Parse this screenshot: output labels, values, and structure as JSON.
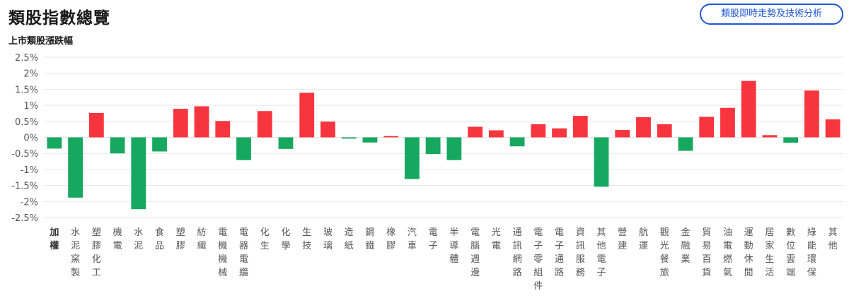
{
  "header": {
    "title": "類股指數總覽",
    "action_button": "類股即時走勢及技術分析"
  },
  "colors": {
    "up": "#f7353f",
    "down": "#16a85f",
    "grid": "#e6e6e6"
  },
  "chart_data": {
    "type": "bar",
    "title": "上市類股漲跌幅",
    "xlabel": "",
    "ylabel": "",
    "ylim": [
      -2.5,
      2.5
    ],
    "yticks": [
      2.5,
      2,
      1.5,
      1,
      0.5,
      0,
      -0.5,
      -1,
      -1.5,
      -2,
      -2.5
    ],
    "ytick_labels": [
      "2.5%",
      "2%",
      "1.5%",
      "1%",
      "0.5%",
      "0%",
      "-0.5%",
      "-1%",
      "-1.5%",
      "-2%",
      "-2.5%"
    ],
    "grid": true,
    "categories": [
      "加權",
      "水泥窯製",
      "塑膠化工",
      "機電",
      "水泥",
      "食品",
      "塑膠",
      "紡織",
      "電機機械",
      "電器電纜",
      "化生",
      "化學",
      "生技",
      "玻璃",
      "造紙",
      "鋼鐵",
      "橡膠",
      "汽車",
      "電子",
      "半導體",
      "電腦週邊",
      "光電",
      "通訊網路",
      "電子零組件",
      "電子通路",
      "資訊服務",
      "其他電子",
      "營建",
      "航運",
      "觀光餐旅",
      "金融業",
      "貿易百貨",
      "油電燃氣",
      "運動休閒",
      "居家生活",
      "數位雲端",
      "綠能環保",
      "其他"
    ],
    "values": [
      -0.35,
      -1.88,
      0.76,
      -0.5,
      -2.24,
      -0.44,
      0.89,
      0.97,
      0.51,
      -0.71,
      0.82,
      -0.36,
      1.39,
      0.49,
      -0.04,
      -0.16,
      0.04,
      -1.3,
      -0.52,
      -0.71,
      0.33,
      0.22,
      -0.28,
      0.41,
      0.28,
      0.67,
      -1.54,
      0.23,
      0.63,
      0.41,
      -0.42,
      0.64,
      0.92,
      1.76,
      0.07,
      -0.17,
      1.46,
      0.56
    ]
  }
}
